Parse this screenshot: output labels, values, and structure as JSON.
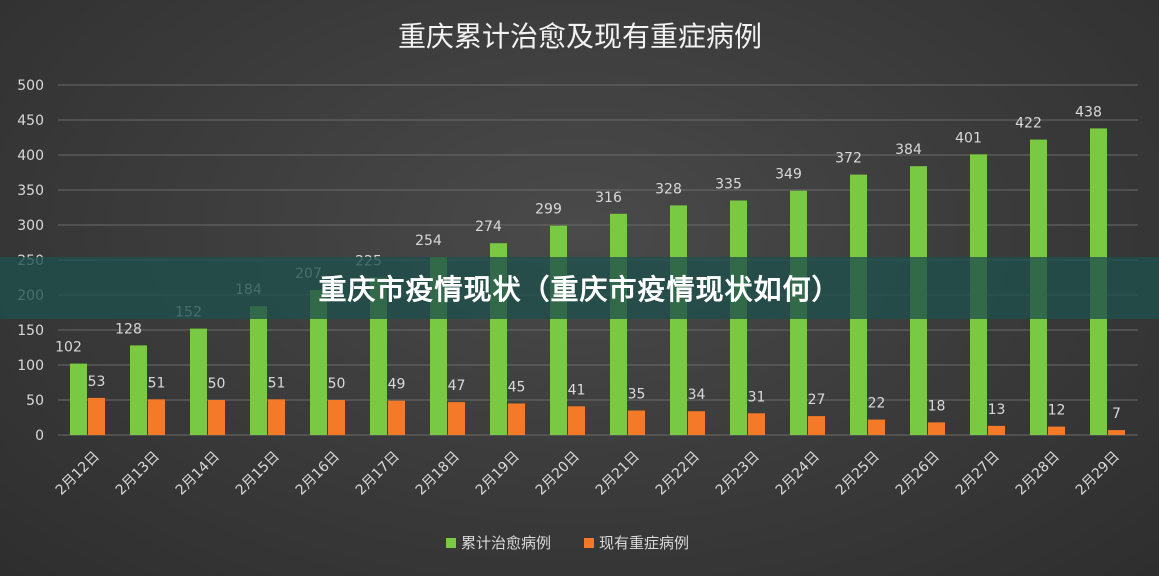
{
  "overlay_banner": "重庆市疫情现状（重庆市疫情现状如何）",
  "chart_data": {
    "type": "bar",
    "title": "重庆累计治愈及现有重症病例",
    "categories": [
      "2月12日",
      "2月13日",
      "2月14日",
      "2月15日",
      "2月16日",
      "2月17日",
      "2月18日",
      "2月19日",
      "2月20日",
      "2月21日",
      "2月22日",
      "2月23日",
      "2月24日",
      "2月25日",
      "2月26日",
      "2月27日",
      "2月28日",
      "2月29日"
    ],
    "series": [
      {
        "name": "累计治愈病例",
        "color": "#7ac943",
        "values": [
          102,
          128,
          152,
          184,
          207,
          225,
          254,
          274,
          299,
          316,
          328,
          335,
          349,
          372,
          384,
          401,
          422,
          438
        ]
      },
      {
        "name": "现有重症病例",
        "color": "#f47a2a",
        "values": [
          53,
          51,
          50,
          51,
          50,
          49,
          47,
          45,
          41,
          35,
          34,
          31,
          27,
          22,
          18,
          13,
          12,
          7
        ]
      }
    ],
    "ylim": [
      0,
      500
    ],
    "yticks": [
      0,
      50,
      100,
      150,
      200,
      250,
      300,
      350,
      400,
      450,
      500
    ],
    "grid": true,
    "legend_position": "bottom"
  }
}
